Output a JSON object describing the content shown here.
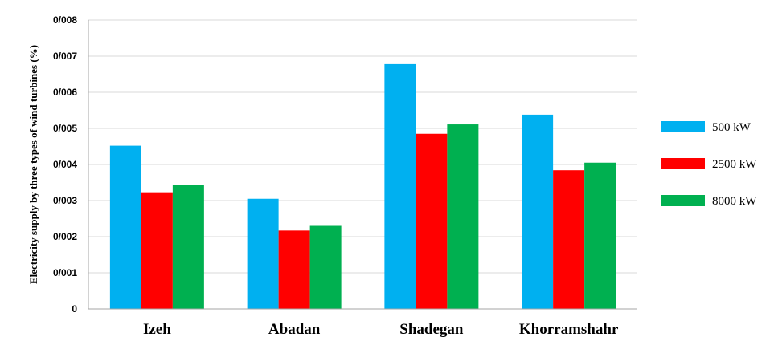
{
  "chart_data": {
    "type": "bar",
    "title": "",
    "xlabel": "",
    "ylabel": "Electricity supply by three types of wind turbines (%)",
    "categories": [
      "Izeh",
      "Abadan",
      "Shadegan",
      "Khorramshahr"
    ],
    "series": [
      {
        "name": "500 kW",
        "color": "#00B0F0",
        "values": [
          0.00452,
          0.00305,
          0.00678,
          0.00538
        ]
      },
      {
        "name": "2500 kW",
        "color": "#FF0000",
        "values": [
          0.00323,
          0.00217,
          0.00485,
          0.00384
        ]
      },
      {
        "name": "8000 kW",
        "color": "#00B050",
        "values": [
          0.00343,
          0.0023,
          0.00511,
          0.00405
        ]
      }
    ],
    "ylim": [
      0,
      0.008
    ],
    "yticks": [
      0,
      0.001,
      0.002,
      0.003,
      0.004,
      0.005,
      0.006,
      0.007,
      0.008
    ],
    "ytick_labels": [
      "0",
      "0/001",
      "0/002",
      "0/003",
      "0/004",
      "0/005",
      "0/006",
      "0/007",
      "0/008"
    ],
    "grid": true,
    "gridline_color": "#D9D9D9",
    "legend_position": "right"
  }
}
